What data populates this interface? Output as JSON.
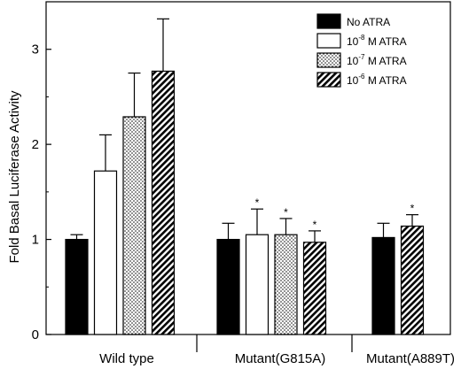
{
  "chart_data": {
    "type": "bar",
    "ylabel": "Fold Basal Luciferase Activity",
    "ylim": [
      0,
      3.5
    ],
    "yticks": [
      "0",
      "1",
      "2",
      "3"
    ],
    "legend_position": "top-right",
    "series": [
      {
        "key": "none",
        "base": "No ATRA",
        "exp": "",
        "suffix": "",
        "fill": "solid"
      },
      {
        "key": "e8",
        "base": "10",
        "exp": "-8",
        "suffix": " M ATRA",
        "fill": "white"
      },
      {
        "key": "e7",
        "base": "10",
        "exp": "-7",
        "suffix": " M ATRA",
        "fill": "dots"
      },
      {
        "key": "e6",
        "base": "10",
        "exp": "-6",
        "suffix": " M ATRA",
        "fill": "hatch"
      }
    ],
    "groups": [
      {
        "label": "Wild type",
        "bars": [
          {
            "series": "none",
            "value": 1.0,
            "error": 0.05,
            "significant": false
          },
          {
            "series": "e8",
            "value": 1.72,
            "error": 0.38,
            "significant": false
          },
          {
            "series": "e7",
            "value": 2.29,
            "error": 0.46,
            "significant": false
          },
          {
            "series": "e6",
            "value": 2.77,
            "error": 0.55,
            "significant": false
          }
        ]
      },
      {
        "label": "Mutant(G815A)",
        "bars": [
          {
            "series": "none",
            "value": 1.0,
            "error": 0.17,
            "significant": false
          },
          {
            "series": "e8",
            "value": 1.05,
            "error": 0.27,
            "significant": true
          },
          {
            "series": "e7",
            "value": 1.05,
            "error": 0.17,
            "significant": true
          },
          {
            "series": "e6",
            "value": 0.97,
            "error": 0.12,
            "significant": true
          }
        ]
      },
      {
        "label": "Mutant(A889T)",
        "bars": [
          {
            "series": "none",
            "value": 1.02,
            "error": 0.15,
            "significant": false
          },
          {
            "series": "e6",
            "value": 1.14,
            "error": 0.12,
            "significant": true
          }
        ]
      }
    ],
    "significance_mark": "*"
  }
}
